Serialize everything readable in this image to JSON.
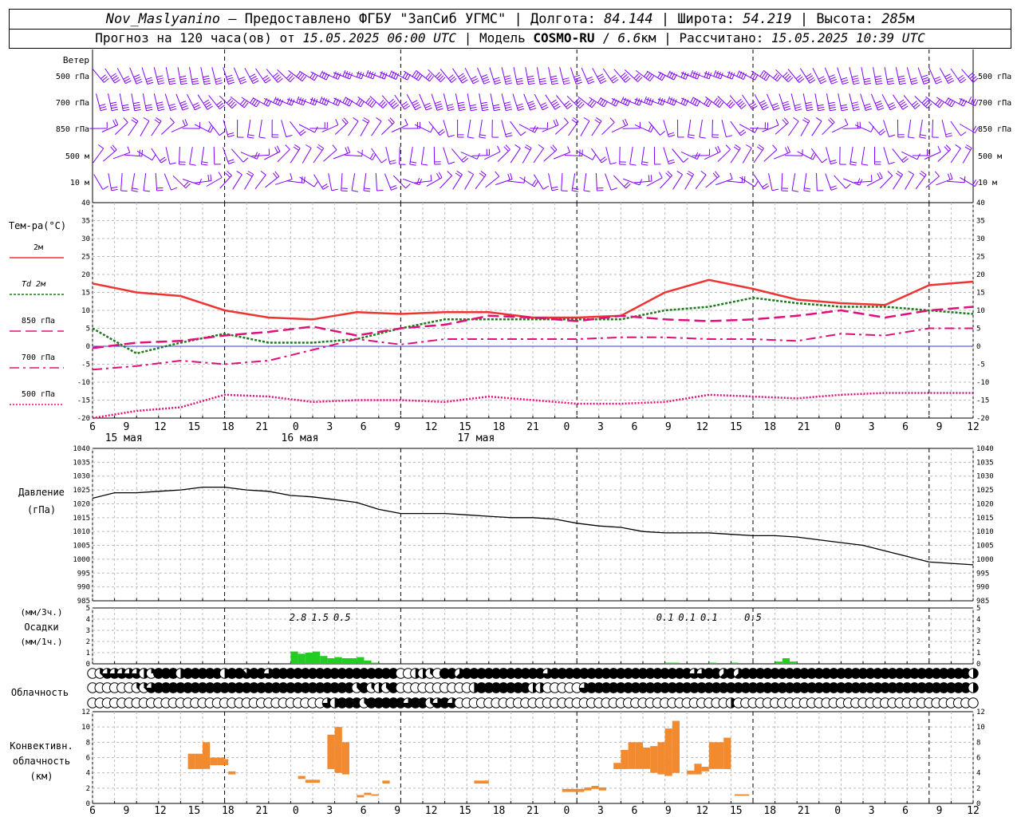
{
  "header": {
    "station": "Nov_Maslyanino",
    "provider": "Предоставлено ФГБУ \"ЗапСиб УГМС\"",
    "lon_label": "Долгота:",
    "lon_value": "84.144",
    "lat_label": "Широта:",
    "lat_value": "54.219",
    "alt_label": "Высота:",
    "alt_value": "285",
    "alt_unit": "м",
    "forecast_label": "Прогноз на 120 часа(ов) от",
    "forecast_time": "15.05.2025 06:00 UTC",
    "model_label": "Модель",
    "model_name": "COSMO-RU",
    "model_res": "6.6",
    "model_res_unit": "км",
    "calc_label": "Рассчитано:",
    "calc_time": "15.05.2025 10:39 UTC"
  },
  "wind_panel": {
    "title": "Ветер",
    "levels": [
      "500 гПа",
      "700 гПа",
      "850 гПа",
      "500 м",
      "10  м"
    ],
    "color": "#8000ff"
  },
  "colors": {
    "t2m": "#ee3333",
    "td2m": "#1a7a1a",
    "t850": "#e0107a",
    "t700": "#e0107a",
    "t500": "#e0107a",
    "zero_line": "#3333ff",
    "precip": "#22cc22",
    "conv": "#f28a30"
  },
  "date_labels": [
    "15 мая",
    "16 мая",
    "17 мая"
  ],
  "hour_labels": [
    "6",
    "9",
    "12",
    "15",
    "18",
    "21",
    "0",
    "3",
    "6",
    "9",
    "12",
    "15",
    "18",
    "21",
    "0",
    "3",
    "6",
    "9",
    "12",
    "15",
    "18",
    "21",
    "0",
    "3",
    "6",
    "9",
    "12"
  ],
  "chart_data": [
    {
      "type": "line",
      "name": "temperature",
      "ylabel": "Тем-ра(°C)",
      "ylim": [
        -20,
        40
      ],
      "ytick_step": 5,
      "legend": [
        "2м",
        "Td 2м",
        "850 гПа",
        "700 гПа",
        "500 гПа"
      ],
      "x_hours": [
        0,
        6,
        12,
        18,
        24,
        30,
        36,
        42,
        48,
        54,
        60,
        66,
        72,
        78,
        84,
        90,
        96,
        102,
        108,
        114,
        120
      ],
      "series": [
        {
          "name": "2м",
          "values": [
            17.5,
            15,
            14,
            10,
            8,
            7.5,
            9.5,
            9,
            9.5,
            9.5,
            8,
            8,
            8.5,
            15,
            18.5,
            16,
            13,
            12,
            11.5,
            17,
            18
          ]
        },
        {
          "name": "Td 2м",
          "values": [
            5,
            -2,
            1,
            3.5,
            1,
            1,
            2,
            5,
            7.5,
            7.5,
            7.5,
            7.5,
            7.5,
            10,
            11,
            13.5,
            12,
            11,
            11,
            10,
            9
          ]
        },
        {
          "name": "850 гПа",
          "values": [
            -0.5,
            1,
            1.5,
            3,
            4,
            5.5,
            3,
            5,
            6,
            8.5,
            8,
            7,
            8.5,
            7.5,
            7,
            7.5,
            8.5,
            10,
            8,
            10,
            11
          ]
        },
        {
          "name": "700 гПа",
          "values": [
            -6.5,
            -5.5,
            -4,
            -5,
            -4,
            -1,
            2,
            0.5,
            2,
            2,
            2,
            2,
            2.5,
            2.5,
            2,
            2,
            1.5,
            3.5,
            3,
            5,
            5
          ]
        },
        {
          "name": "500 гПа",
          "values": [
            -20,
            -18,
            -17,
            -13.5,
            -14,
            -15.5,
            -15,
            -15,
            -15.5,
            -14,
            -15,
            -16,
            -16,
            -15.5,
            -13.5,
            -14,
            -14.5,
            -13.5,
            -13,
            -13,
            -13
          ]
        }
      ]
    },
    {
      "type": "line",
      "name": "pressure",
      "ylabel": "Давление",
      "yunit": "(гПа)",
      "ylim": [
        985,
        1040
      ],
      "ytick_step": 5,
      "x_hours": [
        0,
        3,
        6,
        9,
        12,
        15,
        18,
        21,
        24,
        27,
        30,
        33,
        36,
        39,
        42,
        45,
        48,
        51,
        54,
        57,
        60,
        63,
        66,
        69,
        72,
        75,
        78,
        81,
        84,
        87,
        90,
        93,
        96,
        99,
        102,
        105,
        108,
        111,
        114,
        117,
        120
      ],
      "values": [
        1022,
        1024,
        1024,
        1024.5,
        1025,
        1026,
        1026,
        1025,
        1024.5,
        1023,
        1022.5,
        1021.5,
        1020.5,
        1018,
        1016.5,
        1016.5,
        1016.5,
        1016,
        1015.5,
        1015,
        1015,
        1014.5,
        1013,
        1012,
        1011.5,
        1010,
        1009.5,
        1009.5,
        1009.5,
        1009,
        1008.5,
        1008.5,
        1008,
        1007,
        1006,
        1005,
        1003,
        1001,
        999,
        998.5,
        998
      ]
    },
    {
      "type": "bar",
      "name": "precipitation",
      "ylabel": "Осадки",
      "yunit_top": "(мм/3ч.)",
      "yunit_bottom": "(мм/1ч.)",
      "ylim": [
        0,
        5
      ],
      "x_hours": [
        27,
        28,
        29,
        30,
        31,
        32,
        33,
        34,
        35,
        36,
        37,
        38,
        78,
        79,
        84,
        87,
        93,
        94,
        95
      ],
      "values": [
        1.1,
        0.9,
        1.0,
        1.1,
        0.7,
        0.5,
        0.6,
        0.5,
        0.5,
        0.6,
        0.3,
        0.1,
        0.1,
        0.1,
        0.1,
        0.1,
        0.2,
        0.5,
        0.2
      ],
      "labels_3h": [
        {
          "hour": 28,
          "text": "2.8"
        },
        {
          "hour": 31,
          "text": "1.5"
        },
        {
          "hour": 34,
          "text": "0.5"
        },
        {
          "hour": 78,
          "text": "0.1"
        },
        {
          "hour": 81,
          "text": "0.1"
        },
        {
          "hour": 84,
          "text": "0.1"
        },
        {
          "hour": 90,
          "text": "0.5"
        }
      ]
    },
    {
      "type": "table",
      "name": "cloudiness",
      "label": "Облачность",
      "rows": [
        "high",
        "middle",
        "low"
      ],
      "octas_high": [
        0,
        3,
        6,
        6,
        6,
        6,
        6,
        4,
        2,
        8,
        8,
        8,
        4,
        8,
        8,
        8,
        8,
        8,
        4,
        8,
        8,
        7,
        8,
        8,
        6,
        8,
        8,
        8,
        8,
        8,
        8,
        8,
        8,
        8,
        8,
        8,
        8,
        8,
        8,
        8,
        8,
        8,
        0,
        0,
        4,
        4,
        3,
        0,
        8,
        8,
        5,
        8,
        8,
        8,
        8,
        8,
        8,
        8,
        8,
        8,
        8,
        8,
        6,
        8,
        8,
        8,
        8,
        8,
        8,
        8,
        8,
        8,
        8,
        8,
        8,
        8,
        8,
        8,
        8,
        8,
        8,
        8,
        6,
        6,
        8,
        8,
        5,
        8,
        5,
        8,
        8,
        8,
        8,
        8,
        8,
        8,
        8,
        8,
        8,
        8,
        8,
        8,
        8,
        8,
        8,
        8,
        8,
        8,
        8,
        8,
        8,
        8,
        8,
        8,
        8,
        8,
        8,
        8,
        8,
        8,
        4
      ],
      "octas_middle": [
        0,
        0,
        0,
        0,
        0,
        0,
        3,
        3,
        6,
        8,
        8,
        8,
        8,
        8,
        8,
        8,
        8,
        8,
        8,
        8,
        8,
        8,
        8,
        8,
        8,
        8,
        8,
        8,
        8,
        8,
        8,
        8,
        8,
        8,
        8,
        8,
        3,
        8,
        3,
        4,
        3,
        8,
        0,
        0,
        0,
        0,
        0,
        0,
        0,
        0,
        0,
        0,
        4,
        8,
        8,
        8,
        8,
        8,
        8,
        8,
        4,
        4,
        0,
        0,
        0,
        0,
        0,
        6,
        8,
        8,
        8,
        8,
        8,
        8,
        8,
        8,
        8,
        8,
        8,
        8,
        8,
        8,
        8,
        8,
        8,
        8,
        8,
        8,
        8,
        8,
        8,
        8,
        8,
        8,
        8,
        8,
        8,
        8,
        8,
        8,
        8,
        8,
        8,
        8,
        8,
        8,
        8,
        8,
        8,
        8,
        8,
        8,
        8,
        8,
        8,
        8,
        8,
        8,
        8,
        8,
        4
      ],
      "octas_low": [
        0,
        0,
        0,
        0,
        0,
        0,
        0,
        0,
        0,
        0,
        0,
        0,
        0,
        0,
        0,
        0,
        0,
        0,
        0,
        0,
        0,
        0,
        0,
        0,
        0,
        0,
        0,
        0,
        0,
        0,
        0,
        0,
        6,
        4,
        8,
        8,
        8,
        3,
        8,
        8,
        8,
        8,
        8,
        6,
        8,
        8,
        3,
        6,
        8,
        6,
        0,
        0,
        0,
        0,
        0,
        0,
        0,
        0,
        0,
        0,
        0,
        0,
        0,
        0,
        0,
        0,
        0,
        0,
        0,
        0,
        0,
        0,
        0,
        0,
        0,
        0,
        0,
        0,
        0,
        0,
        0,
        0,
        0,
        0,
        0,
        0,
        0,
        4,
        0,
        0,
        0,
        0,
        0,
        0,
        0,
        0,
        0,
        0,
        0,
        0,
        0,
        0,
        0,
        0,
        0,
        0,
        0,
        0,
        0,
        0,
        0,
        0,
        0,
        0,
        0,
        0,
        0,
        0,
        0,
        0,
        0
      ]
    },
    {
      "type": "bar",
      "name": "convective_cloud",
      "ylabel": "Конвективн.\nоблачность\n(км)",
      "ylim": [
        0,
        12
      ],
      "ytick_step": 2,
      "bars": [
        {
          "h0": 13,
          "h1": 14,
          "bot": 4.5,
          "top": 6.5
        },
        {
          "h0": 14,
          "h1": 15,
          "bot": 4.5,
          "top": 6.5
        },
        {
          "h0": 15,
          "h1": 16,
          "bot": 4.5,
          "top": 8
        },
        {
          "h0": 16,
          "h1": 17,
          "bot": 5,
          "top": 6
        },
        {
          "h0": 17,
          "h1": 18,
          "bot": 5,
          "top": 6
        },
        {
          "h0": 18,
          "h1": 18.5,
          "bot": 5,
          "top": 5.8
        },
        {
          "h0": 18.5,
          "h1": 19.5,
          "bot": 3.8,
          "top": 4.2
        },
        {
          "h0": 28,
          "h1": 29,
          "bot": 3.2,
          "top": 3.6
        },
        {
          "h0": 29,
          "h1": 31,
          "bot": 2.7,
          "top": 3.1
        },
        {
          "h0": 32,
          "h1": 33,
          "bot": 4.5,
          "top": 9
        },
        {
          "h0": 33,
          "h1": 34,
          "bot": 4,
          "top": 10
        },
        {
          "h0": 34,
          "h1": 35,
          "bot": 3.8,
          "top": 8
        },
        {
          "h0": 36,
          "h1": 37,
          "bot": 0.8,
          "top": 1.1
        },
        {
          "h0": 37,
          "h1": 38,
          "bot": 1.1,
          "top": 1.4
        },
        {
          "h0": 38,
          "h1": 39,
          "bot": 1,
          "top": 1.2
        },
        {
          "h0": 39.5,
          "h1": 40.5,
          "bot": 2.6,
          "top": 3
        },
        {
          "h0": 52,
          "h1": 54,
          "bot": 2.6,
          "top": 3
        },
        {
          "h0": 64,
          "h1": 67,
          "bot": 1.5,
          "top": 1.9
        },
        {
          "h0": 67,
          "h1": 68,
          "bot": 1.7,
          "top": 2.1
        },
        {
          "h0": 68,
          "h1": 69,
          "bot": 1.9,
          "top": 2.3
        },
        {
          "h0": 69,
          "h1": 70,
          "bot": 1.7,
          "top": 2.1
        },
        {
          "h0": 71,
          "h1": 72,
          "bot": 4.5,
          "top": 5.3
        },
        {
          "h0": 72,
          "h1": 73,
          "bot": 4.5,
          "top": 7
        },
        {
          "h0": 73,
          "h1": 74,
          "bot": 4.5,
          "top": 8
        },
        {
          "h0": 74,
          "h1": 75,
          "bot": 4.5,
          "top": 8
        },
        {
          "h0": 75,
          "h1": 76,
          "bot": 4.5,
          "top": 7.3
        },
        {
          "h0": 76,
          "h1": 77,
          "bot": 4,
          "top": 7.5
        },
        {
          "h0": 77,
          "h1": 78,
          "bot": 3.8,
          "top": 8
        },
        {
          "h0": 78,
          "h1": 79,
          "bot": 3.6,
          "top": 9.8
        },
        {
          "h0": 79,
          "h1": 80,
          "bot": 4,
          "top": 10.8
        },
        {
          "h0": 81,
          "h1": 82,
          "bot": 3.8,
          "top": 4.3
        },
        {
          "h0": 82,
          "h1": 83,
          "bot": 3.8,
          "top": 5.2
        },
        {
          "h0": 83,
          "h1": 84,
          "bot": 4.2,
          "top": 4.8
        },
        {
          "h0": 84,
          "h1": 86,
          "bot": 4.5,
          "top": 8
        },
        {
          "h0": 86,
          "h1": 87,
          "bot": 4.5,
          "top": 8.6
        },
        {
          "h0": 87.5,
          "h1": 89.5,
          "bot": 1,
          "top": 1.2
        }
      ]
    }
  ]
}
